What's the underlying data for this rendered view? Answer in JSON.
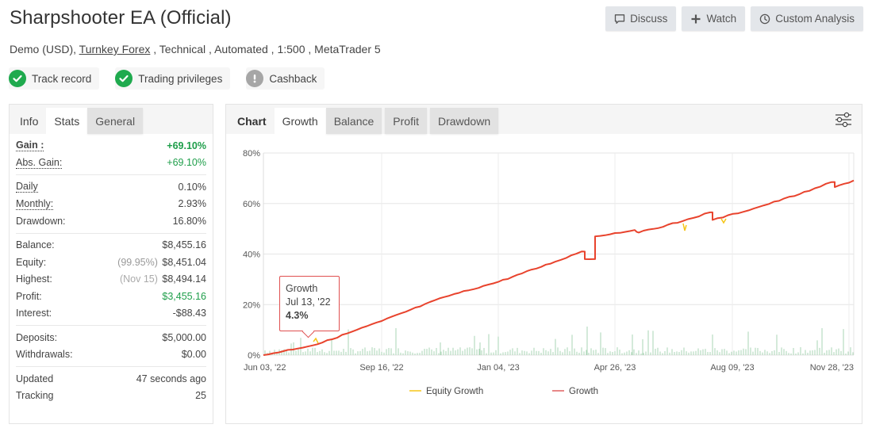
{
  "header": {
    "title": "Sharpshooter EA (Official)",
    "subtitle": {
      "account_type": "Demo (USD),",
      "broker_link": "Turnkey Forex",
      "rest": " , Technical , Automated , 1:500 , MetaTrader 5"
    },
    "badges": [
      {
        "label": "Track record",
        "icon": "check-icon",
        "color": "#1faa4e"
      },
      {
        "label": "Trading privileges",
        "icon": "check-icon",
        "color": "#1faa4e"
      },
      {
        "label": "Cashback",
        "icon": "exclamation-icon",
        "color": "#a6a6a6"
      }
    ],
    "buttons": {
      "discuss": "Discuss",
      "watch": "Watch",
      "custom_analysis": "Custom Analysis"
    }
  },
  "left_panel": {
    "tabs": [
      {
        "label": "Info"
      },
      {
        "label": "Stats"
      },
      {
        "label": "General"
      }
    ],
    "active_tab": "Stats",
    "stats": {
      "gain": {
        "label": "Gain :",
        "value": "+69.10%"
      },
      "abs_gain": {
        "label": "Abs. Gain:",
        "value": "+69.10%"
      },
      "daily": {
        "label": "Daily",
        "value": "0.10%"
      },
      "monthly": {
        "label": "Monthly:",
        "value": "2.93%"
      },
      "drawdown": {
        "label": "Drawdown:",
        "value": "16.80%"
      },
      "balance": {
        "label": "Balance:",
        "value": "$8,455.16"
      },
      "equity": {
        "label": "Equity:",
        "note": "(99.95%)",
        "value": "$8,451.04"
      },
      "highest": {
        "label": "Highest:",
        "note": "(Nov 15)",
        "value": "$8,494.14"
      },
      "profit": {
        "label": "Profit:",
        "value": "$3,455.16"
      },
      "interest": {
        "label": "Interest:",
        "value": "-$88.43"
      },
      "deposits": {
        "label": "Deposits:",
        "value": "$5,000.00"
      },
      "withdrawals": {
        "label": "Withdrawals:",
        "value": "$0.00"
      },
      "updated": {
        "label": "Updated",
        "value": "47 seconds ago"
      },
      "tracking": {
        "label": "Tracking",
        "value": "25"
      }
    }
  },
  "chart_panel": {
    "tabs": [
      {
        "label": "Chart"
      },
      {
        "label": "Growth"
      },
      {
        "label": "Balance"
      },
      {
        "label": "Profit"
      },
      {
        "label": "Drawdown"
      }
    ],
    "active_tab": "Growth",
    "tooltip": {
      "series": "Growth",
      "date": "Jul 13, '22",
      "value": "4.3%"
    }
  },
  "colors": {
    "growth": "#e8432d",
    "equity_growth": "#f5c518",
    "volume_bars": "#a9d4b4",
    "positive": "#1e9e4a"
  },
  "chart_data": {
    "type": "line",
    "title": "Growth",
    "xlabel": "",
    "ylabel": "",
    "ylim": [
      0,
      80
    ],
    "y_ticks": [
      "0%",
      "20%",
      "40%",
      "60%",
      "80%"
    ],
    "x_ticks": [
      "Jun 03, '22",
      "Sep 16, '22",
      "Jan 04, '23",
      "Apr 26, '23",
      "Aug 09, '23",
      "Nov 28, '23"
    ],
    "grid": true,
    "legend_position": "bottom",
    "series": [
      {
        "name": "Growth",
        "color": "#e8432d",
        "x": [
          "Jun 03, '22",
          "Jul 13, '22",
          "Sep 16, '22",
          "Nov 10, '22",
          "Jan 04, '23",
          "Feb 28, '23",
          "Mar 20, '23",
          "Mar 23, '23",
          "Apr 01, '23",
          "Apr 03, '23",
          "May 10, '23",
          "May 14, '23",
          "Jun 25, '23",
          "Jul 20, '23",
          "Jul 23, '23",
          "Aug 30, '23",
          "Oct 20, '23",
          "Nov 10, '23",
          "Nov 15, '23",
          "Dec 01, '23"
        ],
        "values": [
          0,
          4.3,
          13.5,
          23,
          29,
          37,
          41,
          38,
          38,
          47,
          49.5,
          48.5,
          53,
          56.5,
          53.5,
          58,
          65,
          68.5,
          66.5,
          69.1
        ]
      },
      {
        "name": "Equity Growth",
        "color": "#f5c518",
        "x": [
          "Jun 03, '22",
          "Sep 16, '22",
          "Jan 04, '23",
          "Apr 26, '23",
          "Jul 05, '23",
          "Jul 06, '23",
          "Aug 03, '23",
          "Aug 04, '23",
          "Dec 01, '23"
        ],
        "values": [
          0,
          13.5,
          29,
          48,
          54,
          49.5,
          54,
          52.5,
          69.1
        ]
      }
    ],
    "legend": [
      "Equity Growth",
      "Growth"
    ]
  }
}
